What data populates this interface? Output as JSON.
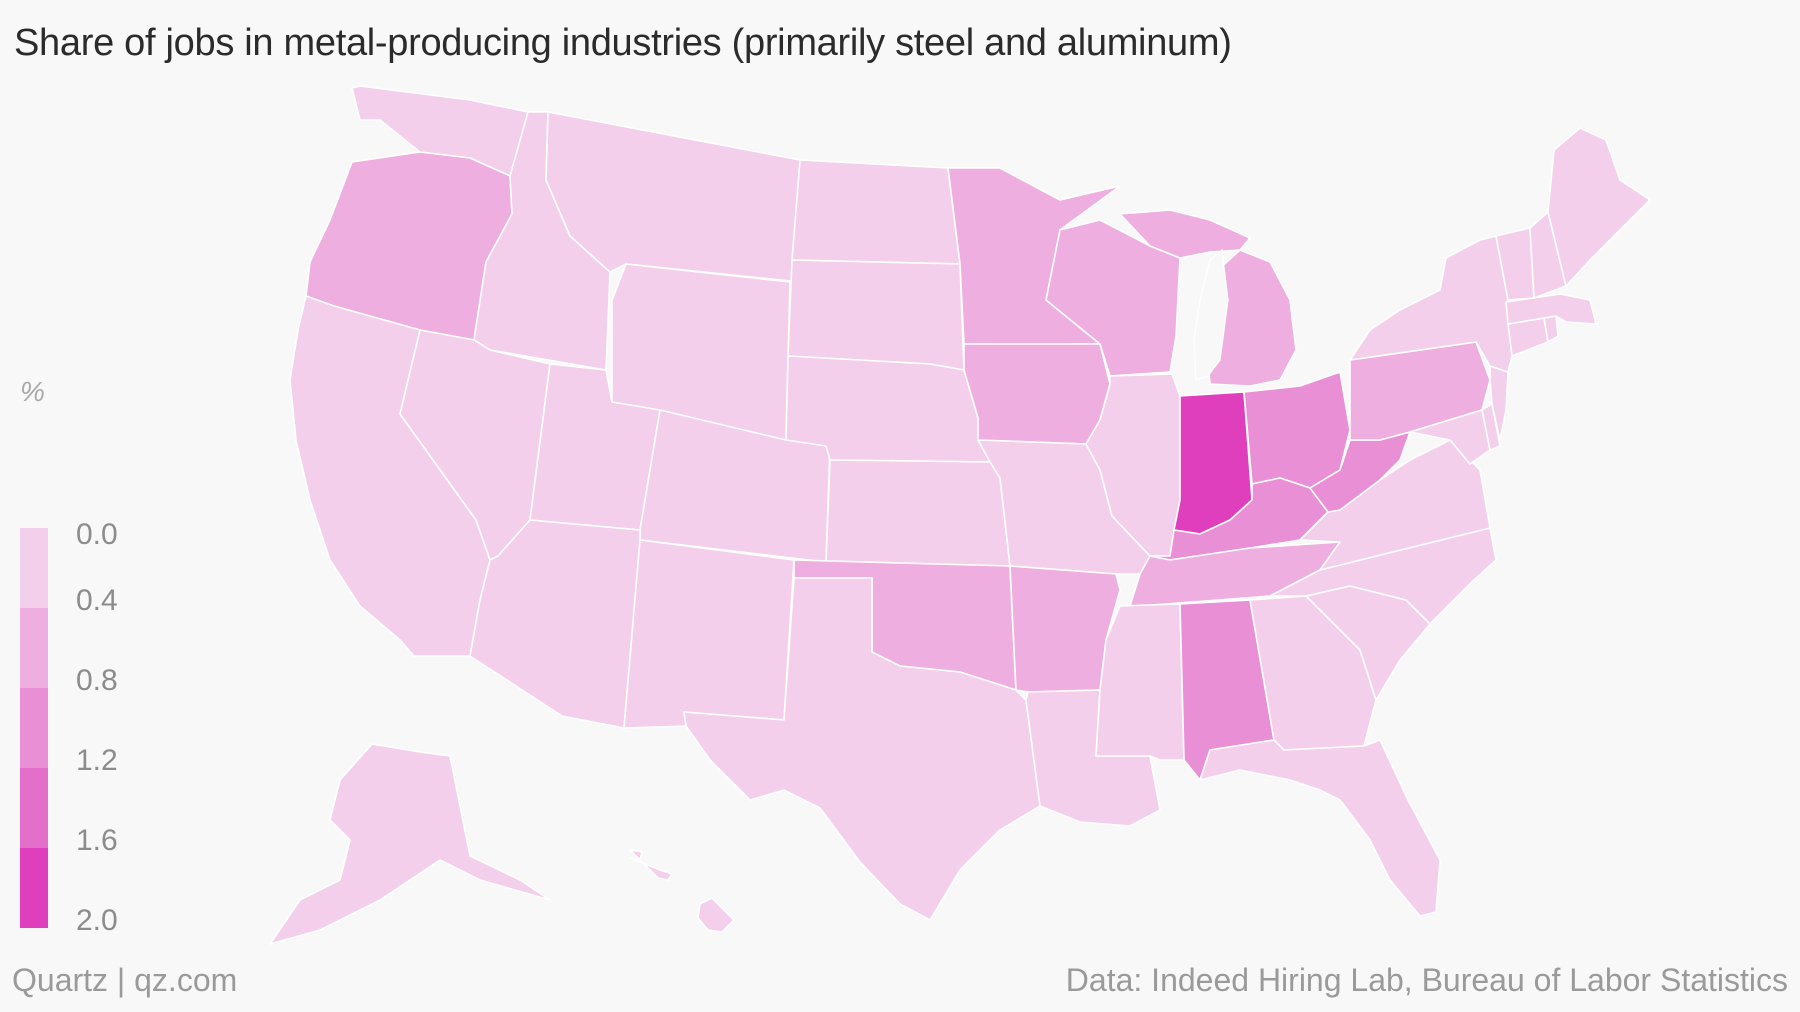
{
  "title": "Share of jobs in metal-producing industries (primarily steel and aluminum)",
  "legend": {
    "unit": "%",
    "bins": [
      {
        "label": "0.0",
        "color": "#f3cfec"
      },
      {
        "label": "0.4",
        "color": "#eeaee0"
      },
      {
        "label": "0.8",
        "color": "#e98fd5"
      },
      {
        "label": "1.2",
        "color": "#e46fcb"
      },
      {
        "label": "1.6",
        "color": "#df3ebd"
      },
      {
        "label": "2.0",
        "color": null
      }
    ]
  },
  "footer": {
    "source_left": "Quartz | qz.com",
    "source_right": "Data: Indeed Hiring Lab, Bureau of Labor Statistics"
  },
  "map": {
    "states": [
      {
        "name": "Washington",
        "bin": 0
      },
      {
        "name": "Oregon",
        "bin": 1
      },
      {
        "name": "California",
        "bin": 0
      },
      {
        "name": "Idaho",
        "bin": 0
      },
      {
        "name": "Nevada",
        "bin": 0
      },
      {
        "name": "Montana",
        "bin": 0
      },
      {
        "name": "Wyoming",
        "bin": 0
      },
      {
        "name": "Utah",
        "bin": 0
      },
      {
        "name": "Colorado",
        "bin": 0
      },
      {
        "name": "Arizona",
        "bin": 0
      },
      {
        "name": "New Mexico",
        "bin": 0
      },
      {
        "name": "North Dakota",
        "bin": 0
      },
      {
        "name": "South Dakota",
        "bin": 0
      },
      {
        "name": "Nebraska",
        "bin": 0
      },
      {
        "name": "Kansas",
        "bin": 0
      },
      {
        "name": "Oklahoma",
        "bin": 1
      },
      {
        "name": "Texas",
        "bin": 0
      },
      {
        "name": "Minnesota",
        "bin": 1
      },
      {
        "name": "Iowa",
        "bin": 1
      },
      {
        "name": "Missouri",
        "bin": 0
      },
      {
        "name": "Arkansas",
        "bin": 1
      },
      {
        "name": "Louisiana",
        "bin": 0
      },
      {
        "name": "Wisconsin",
        "bin": 1
      },
      {
        "name": "Illinois",
        "bin": 0
      },
      {
        "name": "Michigan",
        "bin": 1
      },
      {
        "name": "Indiana",
        "bin": 4
      },
      {
        "name": "Ohio",
        "bin": 2
      },
      {
        "name": "Kentucky",
        "bin": 2
      },
      {
        "name": "Tennessee",
        "bin": 1
      },
      {
        "name": "Mississippi",
        "bin": 0
      },
      {
        "name": "Alabama",
        "bin": 2
      },
      {
        "name": "Georgia",
        "bin": 0
      },
      {
        "name": "Florida",
        "bin": 0
      },
      {
        "name": "South Carolina",
        "bin": 0
      },
      {
        "name": "North Carolina",
        "bin": 0
      },
      {
        "name": "Virginia",
        "bin": 0
      },
      {
        "name": "West Virginia",
        "bin": 2
      },
      {
        "name": "Maryland",
        "bin": 0
      },
      {
        "name": "Delaware",
        "bin": 0
      },
      {
        "name": "Pennsylvania",
        "bin": 1
      },
      {
        "name": "New Jersey",
        "bin": 0
      },
      {
        "name": "New York",
        "bin": 0
      },
      {
        "name": "Connecticut",
        "bin": 0
      },
      {
        "name": "Rhode Island",
        "bin": 0
      },
      {
        "name": "Massachusetts",
        "bin": 0
      },
      {
        "name": "Vermont",
        "bin": 0
      },
      {
        "name": "New Hampshire",
        "bin": 0
      },
      {
        "name": "Maine",
        "bin": 0
      },
      {
        "name": "Alaska",
        "bin": 0
      },
      {
        "name": "Hawaii",
        "bin": 0
      }
    ]
  }
}
